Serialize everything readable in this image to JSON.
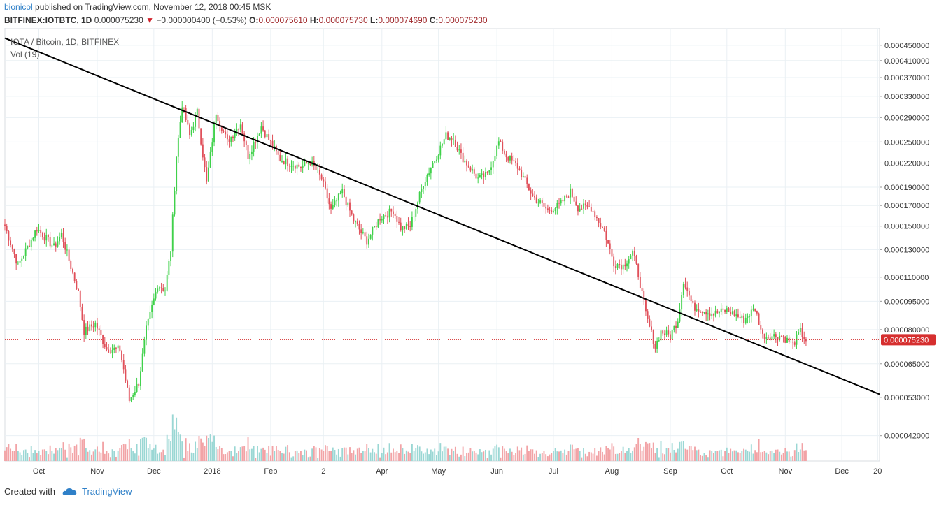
{
  "header": {
    "author": "bionicol",
    "published": "published on TradingView.com, November 12, 2018 00:45 MSK",
    "symbol": "BITFINEX:IOTBTC, 1D",
    "last": "0.000075230",
    "arrow": "▼",
    "change": "−0.000000400 (−0.53%)",
    "o_label": "O:",
    "o_value": "0.000075610",
    "h_label": "H:",
    "h_value": "0.000075730",
    "l_label": "L:",
    "l_value": "0.000074690",
    "c_label": "C:",
    "c_value": "0.000075230"
  },
  "footer": {
    "created_with": "Created with",
    "brand": "TradingView"
  },
  "colors": {
    "up": "#3fd14a",
    "down": "#e0505a",
    "vol_up": "#9ad7d4",
    "vol_down": "#f2a3a6",
    "trendline": "#000000",
    "price_line": "#d62f2f",
    "grid": "#eaf0f4",
    "axis_text": "#333333"
  },
  "chart_data": {
    "type": "candlestick",
    "title": "IOTA / Bitcoin, 1D, BITFINEX",
    "indicator": "Vol (19)",
    "price_scale": "log",
    "ylim": [
      3.6e-05,
      0.0005
    ],
    "y_ticks": [
      "0.000450000",
      "0.000410000",
      "0.000370000",
      "0.000330000",
      "0.000290000",
      "0.000250000",
      "0.000220000",
      "0.000190000",
      "0.000170000",
      "0.000150000",
      "0.000130000",
      "0.000110000",
      "0.000095000",
      "0.000080000",
      "0.000065000",
      "0.000053000",
      "0.000042000"
    ],
    "x_ticks": [
      "Oct",
      "Nov",
      "Dec",
      "2018",
      "Feb",
      "2",
      "Apr",
      "May",
      "Jun",
      "Jul",
      "Aug",
      "Sep",
      "Oct",
      "Nov",
      "Dec",
      "20"
    ],
    "x_range": [
      "2017-09-13",
      "2018-12-21"
    ],
    "last_price": "0.000075230",
    "trendline": {
      "from": [
        "2017-09-13",
        0.00047
      ],
      "to": [
        "2018-12-21",
        5.4e-05
      ]
    },
    "anchors": [
      [
        "2017-09-13",
        0.00015
      ],
      [
        "2017-09-20",
        0.000118
      ],
      [
        "2017-09-30",
        0.000148
      ],
      [
        "2017-10-09",
        0.000132
      ],
      [
        "2017-10-13",
        0.000143
      ],
      [
        "2017-10-22",
        0.0001
      ],
      [
        "2017-10-25",
        7.9e-05
      ],
      [
        "2017-10-31",
        8.3e-05
      ],
      [
        "2017-11-06",
        7.1e-05
      ],
      [
        "2017-11-13",
        7.1e-05
      ],
      [
        "2017-11-18",
        5.2e-05
      ],
      [
        "2017-11-23",
        5.8e-05
      ],
      [
        "2017-11-27",
        8e-05
      ],
      [
        "2017-12-03",
        0.000105
      ],
      [
        "2017-12-07",
        0.000102
      ],
      [
        "2017-12-10",
        0.00013
      ],
      [
        "2017-12-13",
        0.00023
      ],
      [
        "2017-12-16",
        0.000315
      ],
      [
        "2017-12-20",
        0.00026
      ],
      [
        "2017-12-24",
        0.0003
      ],
      [
        "2017-12-29",
        0.000195
      ],
      [
        "2018-01-03",
        0.0003
      ],
      [
        "2018-01-09",
        0.00025
      ],
      [
        "2018-01-16",
        0.00028
      ],
      [
        "2018-01-20",
        0.00023
      ],
      [
        "2018-01-27",
        0.000275
      ],
      [
        "2018-02-06",
        0.000225
      ],
      [
        "2018-02-17",
        0.000215
      ],
      [
        "2018-02-22",
        0.000222
      ],
      [
        "2018-02-28",
        0.0002
      ],
      [
        "2018-03-05",
        0.000165
      ],
      [
        "2018-03-11",
        0.000185
      ],
      [
        "2018-03-17",
        0.000155
      ],
      [
        "2018-03-24",
        0.000137
      ],
      [
        "2018-03-31",
        0.000158
      ],
      [
        "2018-04-07",
        0.000165
      ],
      [
        "2018-04-11",
        0.000148
      ],
      [
        "2018-04-16",
        0.00015
      ],
      [
        "2018-04-23",
        0.000195
      ],
      [
        "2018-04-30",
        0.00023
      ],
      [
        "2018-05-05",
        0.00026
      ],
      [
        "2018-05-09",
        0.000255
      ],
      [
        "2018-05-13",
        0.00023
      ],
      [
        "2018-05-22",
        0.0002
      ],
      [
        "2018-05-27",
        0.000205
      ],
      [
        "2018-06-02",
        0.00025
      ],
      [
        "2018-06-06",
        0.00023
      ],
      [
        "2018-06-12",
        0.000215
      ],
      [
        "2018-06-20",
        0.00018
      ],
      [
        "2018-06-28",
        0.000165
      ],
      [
        "2018-07-04",
        0.00017
      ],
      [
        "2018-07-10",
        0.000185
      ],
      [
        "2018-07-14",
        0.000168
      ],
      [
        "2018-07-21",
        0.000168
      ],
      [
        "2018-07-28",
        0.000145
      ],
      [
        "2018-08-02",
        0.00012
      ],
      [
        "2018-08-07",
        0.000118
      ],
      [
        "2018-08-12",
        0.000128
      ],
      [
        "2018-08-15",
        0.000112
      ],
      [
        "2018-08-19",
        8.8e-05
      ],
      [
        "2018-08-24",
        7.2e-05
      ],
      [
        "2018-08-27",
        7.9e-05
      ],
      [
        "2018-09-01",
        7.7e-05
      ],
      [
        "2018-09-05",
        8.5e-05
      ],
      [
        "2018-09-08",
        0.000108
      ],
      [
        "2018-09-13",
        9.2e-05
      ],
      [
        "2018-09-24",
        8.8e-05
      ],
      [
        "2018-10-01",
        9e-05
      ],
      [
        "2018-10-10",
        8.5e-05
      ],
      [
        "2018-10-16",
        9.1e-05
      ],
      [
        "2018-10-20",
        7.7e-05
      ],
      [
        "2018-10-30",
        7.7e-05
      ],
      [
        "2018-11-05",
        7.3e-05
      ],
      [
        "2018-11-09",
        7.9e-05
      ],
      [
        "2018-11-12",
        7.5e-05
      ]
    ]
  }
}
